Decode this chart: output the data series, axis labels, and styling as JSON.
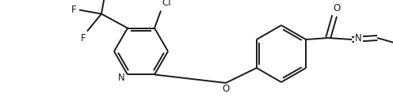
{
  "background_color": "#ffffff",
  "line_color": "#1a1a1a",
  "line_width": 1.4,
  "font_size": 8.5,
  "figsize": [
    4.96,
    1.38
  ],
  "dpi": 100,
  "xlim": [
    0,
    496
  ],
  "ylim": [
    0,
    138
  ]
}
